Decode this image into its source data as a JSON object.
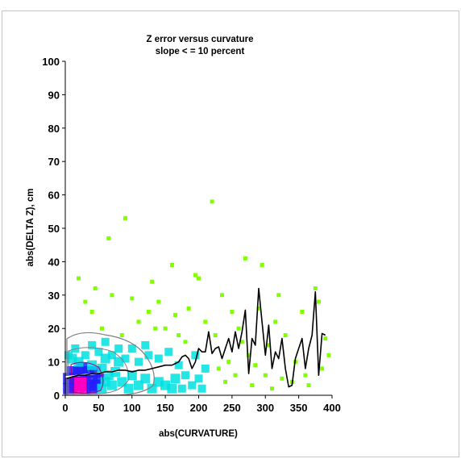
{
  "chart_data": {
    "type": "heatmap",
    "title": "Z error versus curvature",
    "subtitle": "slope < = 10 percent",
    "xlabel": "abs(CURVATURE)",
    "ylabel": "abs(DELTA Z), cm",
    "xlim": [
      0,
      400
    ],
    "ylim": [
      0,
      100
    ],
    "xticks": [
      "0",
      "50",
      "100",
      "150",
      "200",
      "250",
      "300",
      "350",
      "400"
    ],
    "yticks": [
      "0",
      "10",
      "20",
      "30",
      "40",
      "50",
      "60",
      "70",
      "80",
      "90",
      "100"
    ],
    "grid": false,
    "legend": "none",
    "colors": {
      "density_low": "#7fff00",
      "density_mid": "#00e0e0",
      "density_high": "#2020ff",
      "density_peak": "#ff00c0",
      "trend_line": "#000000",
      "regression_line": "#ffffff"
    },
    "mean_curve": {
      "x": [
        2,
        10,
        20,
        30,
        40,
        50,
        60,
        70,
        80,
        90,
        100,
        110,
        120,
        130,
        140,
        150,
        160,
        170,
        175,
        180,
        185,
        190,
        195,
        200,
        205,
        210,
        215,
        220,
        225,
        230,
        235,
        240,
        245,
        250,
        255,
        260,
        265,
        270,
        275,
        280,
        285,
        290,
        295,
        300,
        305,
        310,
        315,
        320,
        325,
        330,
        335,
        340,
        345,
        350,
        355,
        360,
        365,
        370,
        375,
        380,
        385,
        390
      ],
      "y": [
        5,
        5.5,
        6,
        6,
        6.5,
        6.5,
        7,
        7,
        7.5,
        7.5,
        7,
        7.5,
        7.5,
        8,
        8.5,
        9,
        9,
        10,
        11.5,
        12,
        11,
        8,
        10,
        14,
        13,
        13,
        19,
        12.5,
        14,
        14.5,
        11,
        14,
        17,
        13,
        19,
        14,
        19,
        25.5,
        6.5,
        17,
        15,
        32,
        22,
        12,
        21,
        8,
        13,
        11,
        17,
        8,
        2.5,
        3,
        11,
        14,
        17,
        8,
        14,
        18,
        31,
        6,
        18.5,
        18
      ]
    },
    "regression_line": {
      "x": [
        0,
        90
      ],
      "y": [
        5.5,
        7.5
      ]
    },
    "density_points": [
      {
        "x": 10,
        "y": 2,
        "level": 4
      },
      {
        "x": 15,
        "y": 3,
        "level": 4
      },
      {
        "x": 20,
        "y": 2,
        "level": 4
      },
      {
        "x": 25,
        "y": 3,
        "level": 4
      },
      {
        "x": 30,
        "y": 2,
        "level": 4
      },
      {
        "x": 20,
        "y": 4,
        "level": 4
      },
      {
        "x": 15,
        "y": 5,
        "level": 4
      },
      {
        "x": 25,
        "y": 5,
        "level": 4
      },
      {
        "x": 30,
        "y": 4,
        "level": 4
      },
      {
        "x": 35,
        "y": 3,
        "level": 4
      },
      {
        "x": 10,
        "y": 4,
        "level": 4
      },
      {
        "x": 5,
        "y": 2,
        "level": 3
      },
      {
        "x": 40,
        "y": 2,
        "level": 3
      },
      {
        "x": 40,
        "y": 5,
        "level": 3
      },
      {
        "x": 35,
        "y": 7,
        "level": 3
      },
      {
        "x": 20,
        "y": 7,
        "level": 3
      },
      {
        "x": 10,
        "y": 7,
        "level": 3
      },
      {
        "x": 45,
        "y": 3,
        "level": 3
      },
      {
        "x": 50,
        "y": 5,
        "level": 3
      },
      {
        "x": 5,
        "y": 5,
        "level": 3
      },
      {
        "x": 25,
        "y": 8,
        "level": 3
      },
      {
        "x": 45,
        "y": 7,
        "level": 3
      },
      {
        "x": 55,
        "y": 2,
        "level": 2
      },
      {
        "x": 60,
        "y": 4,
        "level": 2
      },
      {
        "x": 65,
        "y": 6,
        "level": 2
      },
      {
        "x": 55,
        "y": 8,
        "level": 2
      },
      {
        "x": 40,
        "y": 9,
        "level": 2
      },
      {
        "x": 20,
        "y": 10,
        "level": 2
      },
      {
        "x": 70,
        "y": 3,
        "level": 2
      },
      {
        "x": 75,
        "y": 7,
        "level": 2
      },
      {
        "x": 85,
        "y": 4,
        "level": 2
      },
      {
        "x": 95,
        "y": 2,
        "level": 2
      },
      {
        "x": 100,
        "y": 6,
        "level": 2
      },
      {
        "x": 110,
        "y": 3,
        "level": 2
      },
      {
        "x": 120,
        "y": 5,
        "level": 2
      },
      {
        "x": 130,
        "y": 2,
        "level": 2
      },
      {
        "x": 140,
        "y": 4,
        "level": 2
      },
      {
        "x": 150,
        "y": 3,
        "level": 2
      },
      {
        "x": 160,
        "y": 2,
        "level": 2
      },
      {
        "x": 165,
        "y": 5,
        "level": 2
      },
      {
        "x": 80,
        "y": 10,
        "level": 2
      },
      {
        "x": 60,
        "y": 11,
        "level": 2
      },
      {
        "x": 10,
        "y": 11,
        "level": 2
      },
      {
        "x": 30,
        "y": 12,
        "level": 1
      },
      {
        "x": 50,
        "y": 13,
        "level": 1
      },
      {
        "x": 70,
        "y": 12,
        "level": 1
      },
      {
        "x": 90,
        "y": 11,
        "level": 1
      },
      {
        "x": 110,
        "y": 10,
        "level": 1
      },
      {
        "x": 125,
        "y": 12,
        "level": 1
      },
      {
        "x": 140,
        "y": 11,
        "level": 1
      },
      {
        "x": 155,
        "y": 13,
        "level": 1
      },
      {
        "x": 170,
        "y": 9,
        "level": 1
      },
      {
        "x": 180,
        "y": 6,
        "level": 1
      },
      {
        "x": 190,
        "y": 3,
        "level": 1
      },
      {
        "x": 175,
        "y": 2,
        "level": 1
      },
      {
        "x": 15,
        "y": 14,
        "level": 1
      },
      {
        "x": 40,
        "y": 15,
        "level": 1
      },
      {
        "x": 80,
        "y": 14,
        "level": 1
      },
      {
        "x": 100,
        "y": 14,
        "level": 1
      },
      {
        "x": 120,
        "y": 15,
        "level": 1
      },
      {
        "x": 60,
        "y": 16,
        "level": 1
      },
      {
        "x": 5,
        "y": 12,
        "level": 1
      },
      {
        "x": 200,
        "y": 5,
        "level": 1
      },
      {
        "x": 210,
        "y": 8,
        "level": 1
      },
      {
        "x": 195,
        "y": 12,
        "level": 1
      },
      {
        "x": 205,
        "y": 2,
        "level": 1
      },
      {
        "x": 20,
        "y": 35,
        "level": 0
      },
      {
        "x": 30,
        "y": 28,
        "level": 0
      },
      {
        "x": 40,
        "y": 25,
        "level": 0
      },
      {
        "x": 55,
        "y": 20,
        "level": 0
      },
      {
        "x": 65,
        "y": 47,
        "level": 0
      },
      {
        "x": 70,
        "y": 30,
        "level": 0
      },
      {
        "x": 90,
        "y": 53,
        "level": 0
      },
      {
        "x": 100,
        "y": 29,
        "level": 0
      },
      {
        "x": 110,
        "y": 22,
        "level": 0
      },
      {
        "x": 130,
        "y": 34,
        "level": 0
      },
      {
        "x": 140,
        "y": 28,
        "level": 0
      },
      {
        "x": 160,
        "y": 39,
        "level": 0
      },
      {
        "x": 150,
        "y": 20,
        "level": 0
      },
      {
        "x": 165,
        "y": 24,
        "level": 0
      },
      {
        "x": 170,
        "y": 18,
        "level": 0
      },
      {
        "x": 180,
        "y": 16,
        "level": 0
      },
      {
        "x": 195,
        "y": 36,
        "level": 0
      },
      {
        "x": 200,
        "y": 35,
        "level": 0
      },
      {
        "x": 210,
        "y": 22,
        "level": 0
      },
      {
        "x": 220,
        "y": 58,
        "level": 0
      },
      {
        "x": 225,
        "y": 18,
        "level": 0
      },
      {
        "x": 230,
        "y": 8,
        "level": 0
      },
      {
        "x": 240,
        "y": 4,
        "level": 0
      },
      {
        "x": 245,
        "y": 10,
        "level": 0
      },
      {
        "x": 250,
        "y": 25,
        "level": 0
      },
      {
        "x": 255,
        "y": 6,
        "level": 0
      },
      {
        "x": 260,
        "y": 20,
        "level": 0
      },
      {
        "x": 270,
        "y": 41,
        "level": 0
      },
      {
        "x": 275,
        "y": 12,
        "level": 0
      },
      {
        "x": 280,
        "y": 3,
        "level": 0
      },
      {
        "x": 285,
        "y": 9,
        "level": 0
      },
      {
        "x": 290,
        "y": 26,
        "level": 0
      },
      {
        "x": 295,
        "y": 39,
        "level": 0
      },
      {
        "x": 300,
        "y": 6,
        "level": 0
      },
      {
        "x": 305,
        "y": 15,
        "level": 0
      },
      {
        "x": 310,
        "y": 2,
        "level": 0
      },
      {
        "x": 320,
        "y": 30,
        "level": 0
      },
      {
        "x": 325,
        "y": 5,
        "level": 0
      },
      {
        "x": 330,
        "y": 18,
        "level": 0
      },
      {
        "x": 340,
        "y": 4,
        "level": 0
      },
      {
        "x": 345,
        "y": 10,
        "level": 0
      },
      {
        "x": 355,
        "y": 25,
        "level": 0
      },
      {
        "x": 365,
        "y": 3,
        "level": 0
      },
      {
        "x": 375,
        "y": 32,
        "level": 0
      },
      {
        "x": 380,
        "y": 28,
        "level": 0
      },
      {
        "x": 385,
        "y": 8,
        "level": 0
      },
      {
        "x": 390,
        "y": 17,
        "level": 0
      },
      {
        "x": 395,
        "y": 12,
        "level": 0
      },
      {
        "x": 185,
        "y": 26,
        "level": 0
      },
      {
        "x": 235,
        "y": 30,
        "level": 0
      },
      {
        "x": 265,
        "y": 16,
        "level": 0
      },
      {
        "x": 315,
        "y": 22,
        "level": 0
      },
      {
        "x": 360,
        "y": 6,
        "level": 0
      },
      {
        "x": 125,
        "y": 25,
        "level": 0
      },
      {
        "x": 45,
        "y": 32,
        "level": 0
      },
      {
        "x": 85,
        "y": 18,
        "level": 0
      },
      {
        "x": 135,
        "y": 20,
        "level": 0
      }
    ]
  }
}
